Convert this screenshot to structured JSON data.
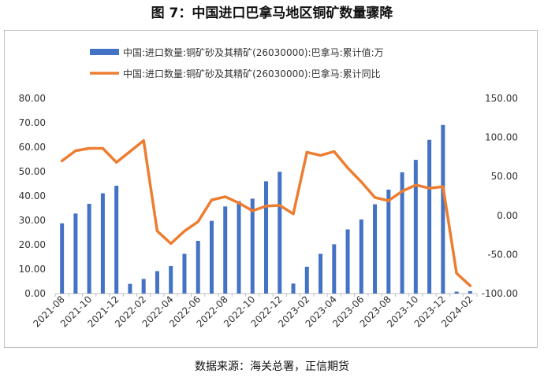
{
  "figure": {
    "title": "图 7：中国进口巴拿马地区铜矿数量骤降",
    "source": "数据来源：海关总署，正信期货"
  },
  "colors": {
    "bar": "#4472C4",
    "line": "#ED7D31",
    "frame": "#bfbfbf",
    "text": "#333333"
  },
  "chart_data": {
    "type": "bar+line",
    "x_tick_labels": [
      "2021-08",
      "2021-10",
      "2021-12",
      "2022-02",
      "2022-04",
      "2022-06",
      "2022-08",
      "2022-10",
      "2022-12",
      "2023-02",
      "2023-04",
      "2023-06",
      "2023-08",
      "2023-10",
      "2023-12",
      "2024-02"
    ],
    "categories": [
      "2021-08",
      "2021-09",
      "2021-10",
      "2021-11",
      "2021-12",
      "2022-01",
      "2022-02",
      "2022-03",
      "2022-04",
      "2022-05",
      "2022-06",
      "2022-07",
      "2022-08",
      "2022-09",
      "2022-10",
      "2022-11",
      "2022-12",
      "2023-01",
      "2023-02",
      "2023-03",
      "2023-04",
      "2023-05",
      "2023-06",
      "2023-07",
      "2023-08",
      "2023-09",
      "2023-10",
      "2023-11",
      "2023-12",
      "2024-01",
      "2024-02"
    ],
    "series": [
      {
        "name": "中国:进口数量:铜矿砂及其精矿(26030000):巴拿马:累计值:万",
        "type": "bar",
        "axis": "left",
        "values": [
          28.8,
          32.8,
          36.8,
          41.1,
          44.2,
          4.0,
          6.0,
          9.2,
          11.3,
          16.3,
          21.6,
          29.8,
          35.7,
          37.9,
          38.9,
          46.0,
          49.9,
          4.1,
          11.0,
          16.3,
          20.2,
          26.3,
          30.4,
          36.6,
          42.6,
          49.7,
          54.8,
          63.0,
          69.1,
          0.8,
          1.0
        ]
      },
      {
        "name": "中国:进口数量:铜矿砂及其精矿(26030000):巴拿马:累计同比",
        "type": "line",
        "axis": "right",
        "values": [
          70,
          83,
          86,
          86,
          68,
          82,
          96,
          -20,
          -36,
          -20,
          -8,
          20,
          24,
          16,
          6,
          12,
          13,
          2,
          81,
          77,
          82,
          61,
          43,
          23,
          19,
          31,
          39,
          35,
          37,
          -74,
          -90
        ]
      }
    ],
    "y_left": {
      "ylim": [
        0,
        80
      ],
      "ticks": [
        "0.00",
        "10.00",
        "20.00",
        "30.00",
        "40.00",
        "50.00",
        "60.00",
        "70.00",
        "80.00"
      ]
    },
    "y_right": {
      "ylim": [
        -100,
        150
      ],
      "ticks": [
        "-100.00",
        "-50.00",
        "0.00",
        "50.00",
        "100.00",
        "150.00"
      ]
    },
    "grid": false,
    "legend_position": "top-center"
  }
}
